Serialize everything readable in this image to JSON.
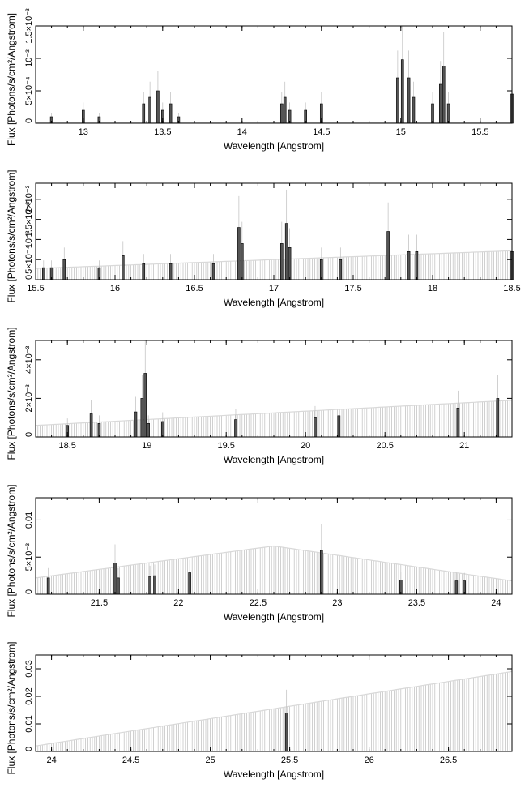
{
  "chart_data": [
    {
      "type": "line",
      "xlabel": "Wavelength [Angstrom]",
      "ylabel": "Flux [Photons/s/cm²/Angstrom]",
      "xlim": [
        12.7,
        15.7
      ],
      "ylim": [
        0,
        0.0015
      ],
      "xticks": [
        13,
        13.5,
        14,
        14.5,
        15,
        15.5
      ],
      "xtick_labels": [
        "13",
        "13.5",
        "14",
        "14.5",
        "15",
        "15.5"
      ],
      "yticks": [
        0,
        0.0005,
        0.001,
        0.0015
      ],
      "ytick_labels": [
        "0",
        "5×10⁻⁴",
        "10⁻³",
        "1.5×10⁻³"
      ],
      "model_y": [
        1e-05,
        1e-05
      ],
      "series": [
        {
          "x": [
            12.8,
            13.0,
            13.1,
            13.38,
            13.42,
            13.47,
            13.5,
            13.55,
            13.6,
            14.25,
            14.27,
            14.3,
            14.4,
            14.5,
            14.98,
            15.01,
            15.05,
            15.08,
            15.2,
            15.25,
            15.27,
            15.3,
            15.7
          ],
          "y": [
            0.0001,
            0.0002,
            0.0001,
            0.0003,
            0.0004,
            0.0005,
            0.0002,
            0.0003,
            0.0001,
            0.0003,
            0.0004,
            0.0002,
            0.0002,
            0.0003,
            0.0007,
            0.00098,
            0.0007,
            0.0004,
            0.0003,
            0.0006,
            0.00088,
            0.0003,
            0.00045
          ]
        }
      ]
    },
    {
      "type": "line",
      "xlabel": "Wavelength [Angstrom]",
      "ylabel": "Flux [Photons/s/cm²/Angstrom]",
      "xlim": [
        15.5,
        18.5
      ],
      "ylim": [
        0,
        0.0024
      ],
      "xticks": [
        15.5,
        16,
        16.5,
        17,
        17.5,
        18,
        18.5
      ],
      "xtick_labels": [
        "15.5",
        "16",
        "16.5",
        "17",
        "17.5",
        "18",
        "18.5"
      ],
      "yticks": [
        0,
        0.0005,
        0.001,
        0.0015,
        0.002
      ],
      "ytick_labels": [
        "0",
        "5×10⁻⁴",
        "10⁻³",
        "1.5×10⁻³",
        "2×10⁻³"
      ],
      "model_y": [
        0.00028,
        0.00072
      ],
      "series": [
        {
          "x": [
            15.55,
            15.6,
            15.68,
            15.9,
            16.05,
            16.18,
            16.35,
            16.62,
            16.78,
            16.8,
            17.05,
            17.08,
            17.1,
            17.3,
            17.42,
            17.72,
            17.85,
            17.9,
            18.5
          ],
          "y": [
            0.0003,
            0.0003,
            0.0005,
            0.0003,
            0.0006,
            0.0004,
            0.0004,
            0.0004,
            0.0013,
            0.0009,
            0.0009,
            0.0014,
            0.0008,
            0.0005,
            0.0005,
            0.0012,
            0.0007,
            0.0007,
            0.0007
          ]
        }
      ]
    },
    {
      "type": "line",
      "xlabel": "Wavelength [Angstrom]",
      "ylabel": "Flux [Photons/s/cm²/Angstrom]",
      "xlim": [
        18.3,
        21.3
      ],
      "ylim": [
        0,
        0.005
      ],
      "xticks": [
        18.5,
        19,
        19.5,
        20,
        20.5,
        21
      ],
      "xtick_labels": [
        "18.5",
        "19",
        "19.5",
        "20",
        "20.5",
        "21"
      ],
      "yticks": [
        0,
        0.002,
        0.004
      ],
      "ytick_labels": [
        "0",
        "2×10⁻³",
        "4×10⁻³"
      ],
      "model_y": [
        0.0006,
        0.0019
      ],
      "series": [
        {
          "x": [
            18.5,
            18.65,
            18.7,
            18.93,
            18.97,
            18.99,
            19.01,
            19.1,
            19.56,
            20.06,
            20.21,
            20.96,
            21.21
          ],
          "y": [
            0.0006,
            0.0012,
            0.0007,
            0.0013,
            0.002,
            0.0033,
            0.0007,
            0.0008,
            0.0009,
            0.001,
            0.0011,
            0.0015,
            0.002
          ]
        }
      ]
    },
    {
      "type": "line",
      "xlabel": "Wavelength [Angstrom]",
      "ylabel": "Flux [Photons/s/cm²/Angstrom]",
      "xlim": [
        21.1,
        24.1
      ],
      "ylim": [
        0,
        0.013
      ],
      "xticks": [
        21.5,
        22,
        22.5,
        23,
        23.5,
        24
      ],
      "xtick_labels": [
        "21.5",
        "22",
        "22.5",
        "23",
        "23.5",
        "24"
      ],
      "yticks": [
        0,
        0.005,
        0.01
      ],
      "ytick_labels": [
        "0",
        "5×10⁻³",
        "0.01"
      ],
      "model_y": [
        0.0022,
        0.0065,
        0.0018
      ],
      "series": [
        {
          "x": [
            21.18,
            21.6,
            21.62,
            21.82,
            21.85,
            22.07,
            22.9,
            23.4,
            23.75,
            23.8
          ],
          "y": [
            0.0022,
            0.0042,
            0.0022,
            0.0024,
            0.0025,
            0.0029,
            0.0059,
            0.0019,
            0.0018,
            0.0018
          ]
        }
      ]
    },
    {
      "type": "line",
      "xlabel": "Wavelength [Angstrom]",
      "ylabel": "Flux [Photons/s/cm²/Angstrom]",
      "xlim": [
        23.9,
        26.9
      ],
      "ylim": [
        0,
        0.035
      ],
      "xticks": [
        24,
        24.5,
        25,
        25.5,
        26,
        26.5
      ],
      "xtick_labels": [
        "24",
        "24.5",
        "25",
        "25.5",
        "26",
        "26.5"
      ],
      "yticks": [
        0,
        0.01,
        0.02,
        0.03
      ],
      "ytick_labels": [
        "0",
        "0.01",
        "0.02",
        "0.03"
      ],
      "model_y": [
        0.002,
        0.029
      ],
      "series": [
        {
          "x": [
            25.48
          ],
          "y": [
            0.014
          ]
        }
      ]
    }
  ]
}
